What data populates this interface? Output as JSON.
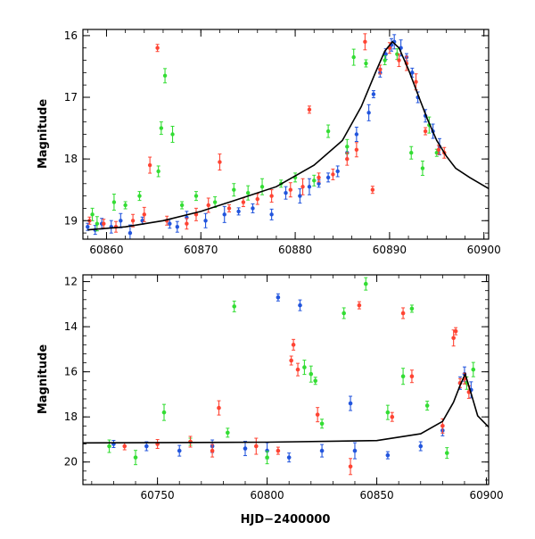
{
  "chart_data": [
    {
      "type": "scatter",
      "panel": "top",
      "title": "",
      "xlabel": "",
      "ylabel": "Magnitude",
      "xlim": [
        60857.5,
        60900.5
      ],
      "ylim": [
        19.3,
        15.9
      ],
      "y_inverted": true,
      "xticks": [
        60860,
        60870,
        60880,
        60890,
        60900
      ],
      "xtick_labels": [
        "60860",
        "60870",
        "60880",
        "60890",
        "60900"
      ],
      "yticks": [
        16,
        17,
        18,
        19
      ],
      "ytick_labels": [
        "16",
        "17",
        "18",
        "19"
      ],
      "grid": false,
      "legend": "none",
      "series": [
        {
          "color": "#2255dd",
          "points": [
            [
              60858.0,
              19.1
            ],
            [
              60858.8,
              19.15
            ],
            [
              60859.5,
              19.05
            ],
            [
              60860.5,
              19.1
            ],
            [
              60861.5,
              19.0
            ],
            [
              60862.5,
              19.2
            ],
            [
              60863.8,
              19.0
            ],
            [
              60866.7,
              19.05
            ],
            [
              60867.5,
              19.1
            ],
            [
              60868.5,
              18.95
            ],
            [
              60870.5,
              19.0
            ],
            [
              60872.5,
              18.9
            ],
            [
              60874.0,
              18.85
            ],
            [
              60875.5,
              18.8
            ],
            [
              60877.5,
              18.9
            ],
            [
              60879.0,
              18.55
            ],
            [
              60880.5,
              18.6
            ],
            [
              60881.5,
              18.45
            ],
            [
              60882.5,
              18.4
            ],
            [
              60883.5,
              18.3
            ],
            [
              60884.5,
              18.2
            ],
            [
              60885.5,
              17.9
            ],
            [
              60886.5,
              17.6
            ],
            [
              60887.8,
              17.25
            ],
            [
              60888.3,
              16.95
            ],
            [
              60889.0,
              16.6
            ],
            [
              60889.6,
              16.3
            ],
            [
              60890.2,
              16.15
            ],
            [
              60890.5,
              16.1
            ],
            [
              60891.2,
              16.2
            ],
            [
              60891.8,
              16.35
            ],
            [
              60892.4,
              16.6
            ],
            [
              60893.0,
              17.0
            ],
            [
              60893.8,
              17.3
            ],
            [
              60894.6,
              17.55
            ],
            [
              60895.3,
              17.8
            ]
          ]
        },
        {
          "color": "#33dd33",
          "points": [
            [
              60858.5,
              18.9
            ],
            [
              60859.0,
              19.05
            ],
            [
              60860.8,
              18.7
            ],
            [
              60862.0,
              18.75
            ],
            [
              60863.5,
              18.6
            ],
            [
              60865.5,
              18.2
            ],
            [
              60865.8,
              17.5
            ],
            [
              60866.2,
              16.65
            ],
            [
              60867.0,
              17.6
            ],
            [
              60868.0,
              18.75
            ],
            [
              60869.5,
              18.6
            ],
            [
              60871.5,
              18.7
            ],
            [
              60873.5,
              18.5
            ],
            [
              60875.0,
              18.55
            ],
            [
              60876.5,
              18.45
            ],
            [
              60878.5,
              18.4
            ],
            [
              60880.0,
              18.3
            ],
            [
              60882.0,
              18.35
            ],
            [
              60883.5,
              17.55
            ],
            [
              60885.5,
              17.8
            ],
            [
              60886.2,
              16.35
            ],
            [
              60887.5,
              16.45
            ],
            [
              60889.5,
              16.4
            ],
            [
              60890.8,
              16.3
            ],
            [
              60892.3,
              17.9
            ],
            [
              60893.5,
              18.15
            ],
            [
              60894.2,
              17.45
            ],
            [
              60895.0,
              17.9
            ]
          ]
        },
        {
          "color": "#ff4433",
          "points": [
            [
              60858.2,
              19.0
            ],
            [
              60859.7,
              19.05
            ],
            [
              60861.0,
              19.1
            ],
            [
              60862.8,
              19.0
            ],
            [
              60864.0,
              18.9
            ],
            [
              60864.6,
              18.1
            ],
            [
              60865.4,
              16.2
            ],
            [
              60866.4,
              19.0
            ],
            [
              60868.5,
              19.05
            ],
            [
              60869.5,
              18.9
            ],
            [
              60870.8,
              18.75
            ],
            [
              60872.0,
              18.05
            ],
            [
              60873.0,
              18.8
            ],
            [
              60874.5,
              18.7
            ],
            [
              60876.0,
              18.65
            ],
            [
              60877.5,
              18.6
            ],
            [
              60879.5,
              18.5
            ],
            [
              60880.8,
              18.45
            ],
            [
              60881.5,
              17.2
            ],
            [
              60882.5,
              18.3
            ],
            [
              60884.0,
              18.25
            ],
            [
              60885.5,
              18.0
            ],
            [
              60886.5,
              17.85
            ],
            [
              60887.4,
              16.1
            ],
            [
              60888.2,
              18.5
            ],
            [
              60889.0,
              16.55
            ],
            [
              60890.0,
              16.2
            ],
            [
              60891.0,
              16.4
            ],
            [
              60891.8,
              16.45
            ],
            [
              60892.8,
              16.75
            ],
            [
              60893.8,
              17.55
            ],
            [
              60895.2,
              17.85
            ],
            [
              60895.8,
              17.9
            ]
          ]
        }
      ],
      "model_curve": [
        [
          60858,
          19.15
        ],
        [
          60862,
          19.1
        ],
        [
          60866,
          19.0
        ],
        [
          60870,
          18.85
        ],
        [
          60874,
          18.65
        ],
        [
          60878,
          18.45
        ],
        [
          60882,
          18.1
        ],
        [
          60885,
          17.7
        ],
        [
          60887,
          17.15
        ],
        [
          60888.5,
          16.6
        ],
        [
          60889.5,
          16.25
        ],
        [
          60890.3,
          16.1
        ],
        [
          60891,
          16.2
        ],
        [
          60892,
          16.55
        ],
        [
          60893,
          16.95
        ],
        [
          60894,
          17.35
        ],
        [
          60895,
          17.7
        ],
        [
          60896,
          17.95
        ],
        [
          60897,
          18.15
        ],
        [
          60898.5,
          18.3
        ],
        [
          60900.5,
          18.48
        ]
      ]
    },
    {
      "type": "scatter",
      "panel": "bottom",
      "title": "",
      "xlabel": "HJD−2400000",
      "ylabel": "Magnitude",
      "xlim": [
        60716,
        60901
      ],
      "ylim": [
        21.0,
        11.7
      ],
      "y_inverted": true,
      "xticks": [
        60750,
        60800,
        60850,
        60900
      ],
      "xtick_labels": [
        "60750",
        "60800",
        "60850",
        "60900"
      ],
      "yticks": [
        12,
        14,
        16,
        18,
        20
      ],
      "ytick_labels": [
        "12",
        "14",
        "16",
        "18",
        "20"
      ],
      "grid": false,
      "legend": "none",
      "series": [
        {
          "color": "#2255dd",
          "points": [
            [
              60730,
              19.2
            ],
            [
              60745,
              19.3
            ],
            [
              60760,
              19.5
            ],
            [
              60775,
              19.3
            ],
            [
              60790,
              19.4
            ],
            [
              60800,
              19.5
            ],
            [
              60805,
              12.7
            ],
            [
              60810,
              19.8
            ],
            [
              60815,
              13.05
            ],
            [
              60825,
              19.5
            ],
            [
              60838,
              17.4
            ],
            [
              60840,
              19.5
            ],
            [
              60855,
              19.7
            ],
            [
              60870,
              19.3
            ],
            [
              60880,
              18.6
            ],
            [
              60888,
              16.5
            ],
            [
              60890,
              16.1
            ],
            [
              60893,
              16.8
            ]
          ]
        },
        {
          "color": "#33dd33",
          "points": [
            [
              60728,
              19.3
            ],
            [
              60740,
              19.8
            ],
            [
              60753,
              17.8
            ],
            [
              60765,
              19.1
            ],
            [
              60782,
              18.7
            ],
            [
              60785,
              13.1
            ],
            [
              60800,
              19.8
            ],
            [
              60817,
              15.8
            ],
            [
              60820,
              16.1
            ],
            [
              60822,
              16.4
            ],
            [
              60825,
              18.3
            ],
            [
              60835,
              13.4
            ],
            [
              60845,
              12.1
            ],
            [
              60855,
              17.8
            ],
            [
              60862,
              16.2
            ],
            [
              60866,
              13.2
            ],
            [
              60873,
              17.5
            ],
            [
              60882,
              19.6
            ],
            [
              60891,
              16.5
            ],
            [
              60894,
              15.9
            ]
          ]
        },
        {
          "color": "#ff4433",
          "points": [
            [
              60735,
              19.3
            ],
            [
              60750,
              19.2
            ],
            [
              60765,
              19.1
            ],
            [
              60775,
              19.5
            ],
            [
              60778,
              17.6
            ],
            [
              60795,
              19.3
            ],
            [
              60805,
              19.5
            ],
            [
              60811,
              15.5
            ],
            [
              60812,
              14.8
            ],
            [
              60814,
              15.9
            ],
            [
              60823,
              17.9
            ],
            [
              60838,
              20.2
            ],
            [
              60842,
              13.05
            ],
            [
              60857,
              18.0
            ],
            [
              60862,
              13.4
            ],
            [
              60866,
              16.2
            ],
            [
              60880,
              18.4
            ],
            [
              60885,
              14.5
            ],
            [
              60886,
              14.2
            ],
            [
              60888,
              16.5
            ],
            [
              60890,
              16.3
            ],
            [
              60892,
              16.9
            ]
          ]
        }
      ],
      "model_curve": [
        [
          60716,
          19.15
        ],
        [
          60800,
          19.12
        ],
        [
          60850,
          19.05
        ],
        [
          60870,
          18.75
        ],
        [
          60880,
          18.2
        ],
        [
          60885,
          17.35
        ],
        [
          60888,
          16.6
        ],
        [
          60890.3,
          16.1
        ],
        [
          60893,
          16.95
        ],
        [
          60896,
          17.95
        ],
        [
          60901,
          18.45
        ]
      ]
    }
  ]
}
